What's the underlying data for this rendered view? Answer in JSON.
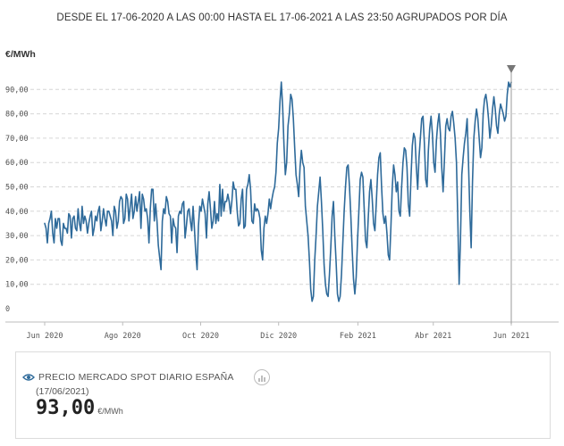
{
  "header": {
    "title": "DESDE EL 17-06-2020 A LAS 00:00 HASTA EL 17-06-2021 A LAS 23:50 AGRUPADOS POR DÍA"
  },
  "chart_data": {
    "type": "line",
    "ylabel": "€/MWh",
    "ylim": [
      0,
      98
    ],
    "yticks": [
      "0",
      "10,00",
      "20,00",
      "30,00",
      "40,00",
      "50,00",
      "60,00",
      "70,00",
      "80,00",
      "90,00"
    ],
    "xticks": [
      "Jun 2020",
      "Ago 2020",
      "Oct 2020",
      "Dic 2020",
      "Feb 2021",
      "Abr 2021",
      "Jun 2021"
    ],
    "xtick_days": [
      0,
      61,
      122,
      183,
      245,
      304,
      365
    ],
    "line_color": "#2e6a9a",
    "grid": "horizontal-dashed",
    "cursor": {
      "day": 365,
      "value": 93.0
    },
    "series": [
      {
        "values": [
          35.0,
          33.0,
          27.0,
          35.0,
          37.0,
          40.0,
          31.0,
          27.0,
          37.0,
          33.0,
          37.0,
          37.0,
          28.0,
          26.0,
          35.0,
          33.0,
          33.0,
          31.0,
          39.0,
          38.0,
          29.0,
          37.0,
          38.0,
          33.0,
          32.0,
          41.0,
          35.0,
          32.0,
          42.0,
          35.0,
          38.0,
          36.0,
          31.0,
          35.0,
          38.0,
          40.0,
          30.0,
          33.0,
          38.0,
          36.0,
          40.0,
          42.0,
          32.0,
          36.0,
          41.0,
          37.0,
          34.0,
          40.0,
          40.0,
          38.0,
          36.0,
          30.0,
          42.0,
          40.0,
          33.0,
          36.0,
          44.0,
          46.0,
          45.0,
          35.0,
          37.0,
          47.0,
          45.0,
          36.0,
          42.0,
          47.0,
          37.0,
          40.0,
          46.0,
          40.0,
          44.0,
          48.0,
          33.0,
          47.0,
          45.0,
          40.0,
          41.0,
          37.0,
          27.0,
          41.0,
          49.0,
          49.0,
          36.0,
          43.0,
          36.0,
          26.0,
          21.0,
          16.0,
          36.0,
          41.0,
          39.0,
          46.0,
          44.0,
          39.0,
          38.0,
          27.0,
          37.0,
          34.0,
          33.0,
          23.0,
          38.0,
          40.0,
          39.0,
          43.0,
          44.0,
          29.0,
          34.0,
          40.0,
          41.0,
          36.0,
          32.0,
          42.0,
          33.0,
          23.0,
          16.0,
          34.0,
          42.0,
          40.0,
          45.0,
          42.0,
          39.0,
          29.0,
          43.0,
          48.0,
          41.0,
          33.0,
          36.0,
          44.0,
          35.0,
          39.0,
          36.0,
          51.0,
          38.0,
          49.0,
          40.0,
          44.0,
          44.0,
          47.0,
          44.0,
          39.0,
          44.0,
          52.0,
          49.0,
          49.0,
          40.0,
          34.0,
          35.0,
          45.0,
          49.0,
          33.0,
          34.0,
          49.0,
          51.0,
          55.0,
          49.0,
          36.0,
          35.0,
          43.0,
          40.0,
          41.0,
          40.0,
          37.0,
          24.0,
          20.0,
          33.0,
          38.0,
          35.0,
          39.0,
          45.0,
          41.0,
          45.0,
          48.0,
          50.0,
          56.0,
          68.0,
          74.0,
          85.0,
          93.0,
          83.0,
          67.0,
          55.0,
          60.0,
          75.0,
          80.0,
          88.0,
          86.0,
          78.0,
          66.0,
          55.0,
          51.0,
          46.0,
          58.0,
          65.0,
          60.0,
          58.0,
          42.0,
          36.0,
          30.0,
          20.0,
          8.0,
          3.0,
          5.0,
          20.0,
          30.0,
          42.0,
          48.0,
          54.0,
          44.0,
          32.0,
          18.0,
          10.0,
          6.0,
          5.0,
          14.0,
          25.0,
          38.0,
          44.0,
          30.0,
          19.0,
          6.0,
          3.0,
          5.0,
          14.0,
          27.0,
          40.0,
          50.0,
          58.0,
          59.0,
          50.0,
          38.0,
          24.0,
          12.0,
          6.0,
          13.0,
          28.0,
          40.0,
          53.0,
          56.0,
          54.0,
          41.0,
          28.0,
          25.0,
          37.0,
          48.0,
          53.0,
          45.0,
          35.0,
          32.0,
          43.0,
          55.0,
          62.0,
          64.0,
          50.0,
          39.0,
          35.0,
          38.0,
          31.0,
          22.0,
          20.0,
          34.0,
          50.0,
          59.0,
          55.0,
          48.0,
          52.0,
          40.0,
          38.0,
          50.0,
          60.0,
          66.0,
          65.0,
          58.0,
          43.0,
          38.0,
          54.0,
          67.0,
          72.0,
          70.0,
          58.0,
          49.0,
          62.0,
          70.0,
          78.0,
          79.0,
          68.0,
          53.0,
          50.0,
          65.0,
          74.0,
          79.0,
          72.0,
          60.0,
          56.0,
          69.0,
          76.0,
          80.0,
          72.0,
          58.0,
          48.0,
          61.0,
          75.0,
          78.0,
          74.0,
          73.0,
          79.0,
          81.0,
          76.0,
          70.0,
          60.0,
          37.0,
          10.0,
          28.0,
          55.0,
          62.0,
          68.0,
          72.0,
          78.0,
          60.0,
          40.0,
          25.0,
          52.0,
          70.0,
          77.0,
          82.0,
          78.0,
          70.0,
          62.0,
          66.0,
          80.0,
          86.0,
          88.0,
          84.0,
          78.0,
          70.0,
          75.0,
          82.0,
          87.0,
          82.0,
          75.0,
          72.0,
          80.0,
          84.0,
          82.0,
          80.0,
          77.0,
          79.0,
          88.0,
          93.0,
          91.0,
          93.0
        ]
      }
    ]
  },
  "card": {
    "title": "PRECIO MERCADO SPOT DIARIO ESPAÑA",
    "date": "(17/06/2021)",
    "value": "93,00",
    "unit": "€/MWh",
    "eye_icon": "eye-icon",
    "chart_icon": "chart-icon"
  }
}
